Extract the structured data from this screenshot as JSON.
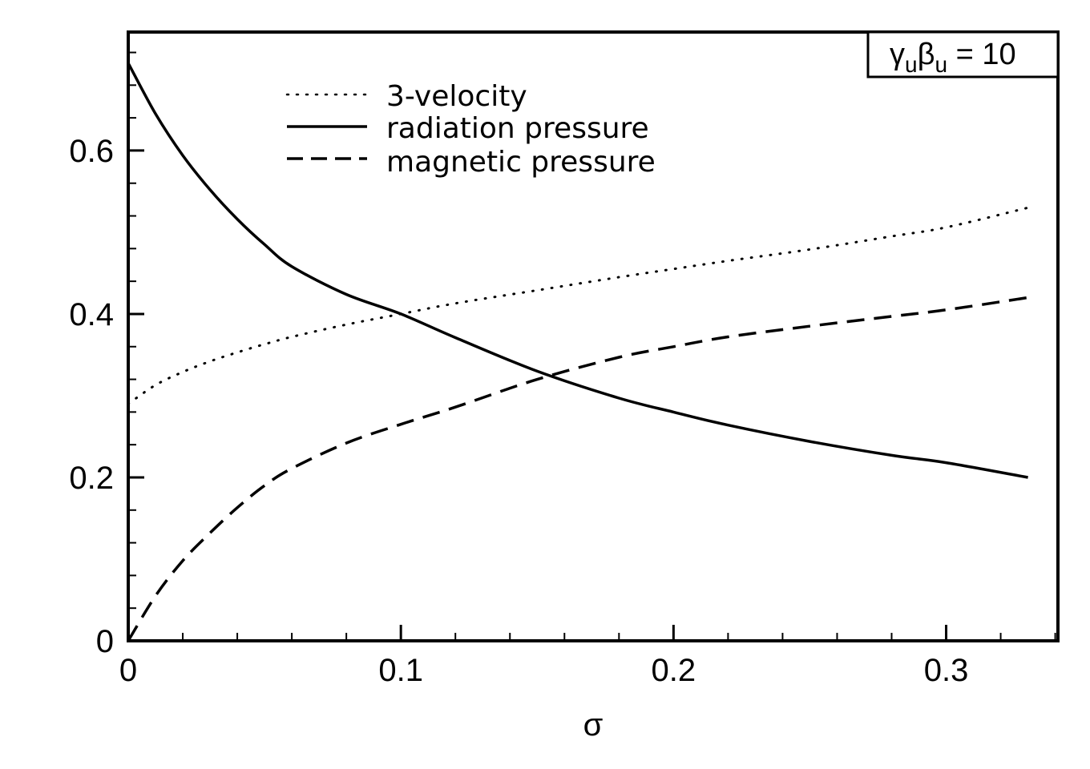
{
  "chart_data": {
    "type": "line",
    "title": "",
    "xlabel": "σ",
    "ylabel": "",
    "xlim": [
      0,
      0.341
    ],
    "ylim": [
      0,
      0.745
    ],
    "grid": false,
    "x_ticks": [
      0,
      0.1,
      0.2,
      0.3
    ],
    "x_tick_labels": [
      "0",
      "0.1",
      "0.2",
      "0.3"
    ],
    "x_minor_step": 0.02,
    "y_ticks": [
      0,
      0.2,
      0.4,
      0.6
    ],
    "y_tick_labels": [
      "0",
      "0.2",
      "0.4",
      "0.6"
    ],
    "y_minor_step": 0.04,
    "legend_position": "top-center",
    "annotation": {
      "greek1": "γ",
      "sub1": "u",
      "greek2": "β",
      "sub2": "u",
      "rest": " = 10",
      "position": "top-right"
    },
    "x": [
      0,
      0.01,
      0.02,
      0.03,
      0.04,
      0.05,
      0.06,
      0.08,
      0.1,
      0.12,
      0.15,
      0.18,
      0.2,
      0.22,
      0.25,
      0.28,
      0.3,
      0.33
    ],
    "series": [
      {
        "name": "3-velocity",
        "style": "dotted",
        "values": [
          0.29,
          0.313,
          0.329,
          0.342,
          0.353,
          0.363,
          0.372,
          0.387,
          0.4,
          0.413,
          0.429,
          0.445,
          0.455,
          0.465,
          0.479,
          0.495,
          0.506,
          0.53
        ]
      },
      {
        "name": "radiation pressure",
        "style": "solid",
        "values": [
          0.707,
          0.645,
          0.594,
          0.552,
          0.516,
          0.485,
          0.458,
          0.424,
          0.4,
          0.371,
          0.33,
          0.297,
          0.28,
          0.264,
          0.244,
          0.227,
          0.218,
          0.2
        ]
      },
      {
        "name": "magnetic pressure",
        "style": "dashed",
        "values": [
          0.0,
          0.055,
          0.098,
          0.132,
          0.163,
          0.19,
          0.211,
          0.242,
          0.265,
          0.286,
          0.32,
          0.347,
          0.36,
          0.372,
          0.385,
          0.397,
          0.405,
          0.42
        ]
      }
    ]
  }
}
